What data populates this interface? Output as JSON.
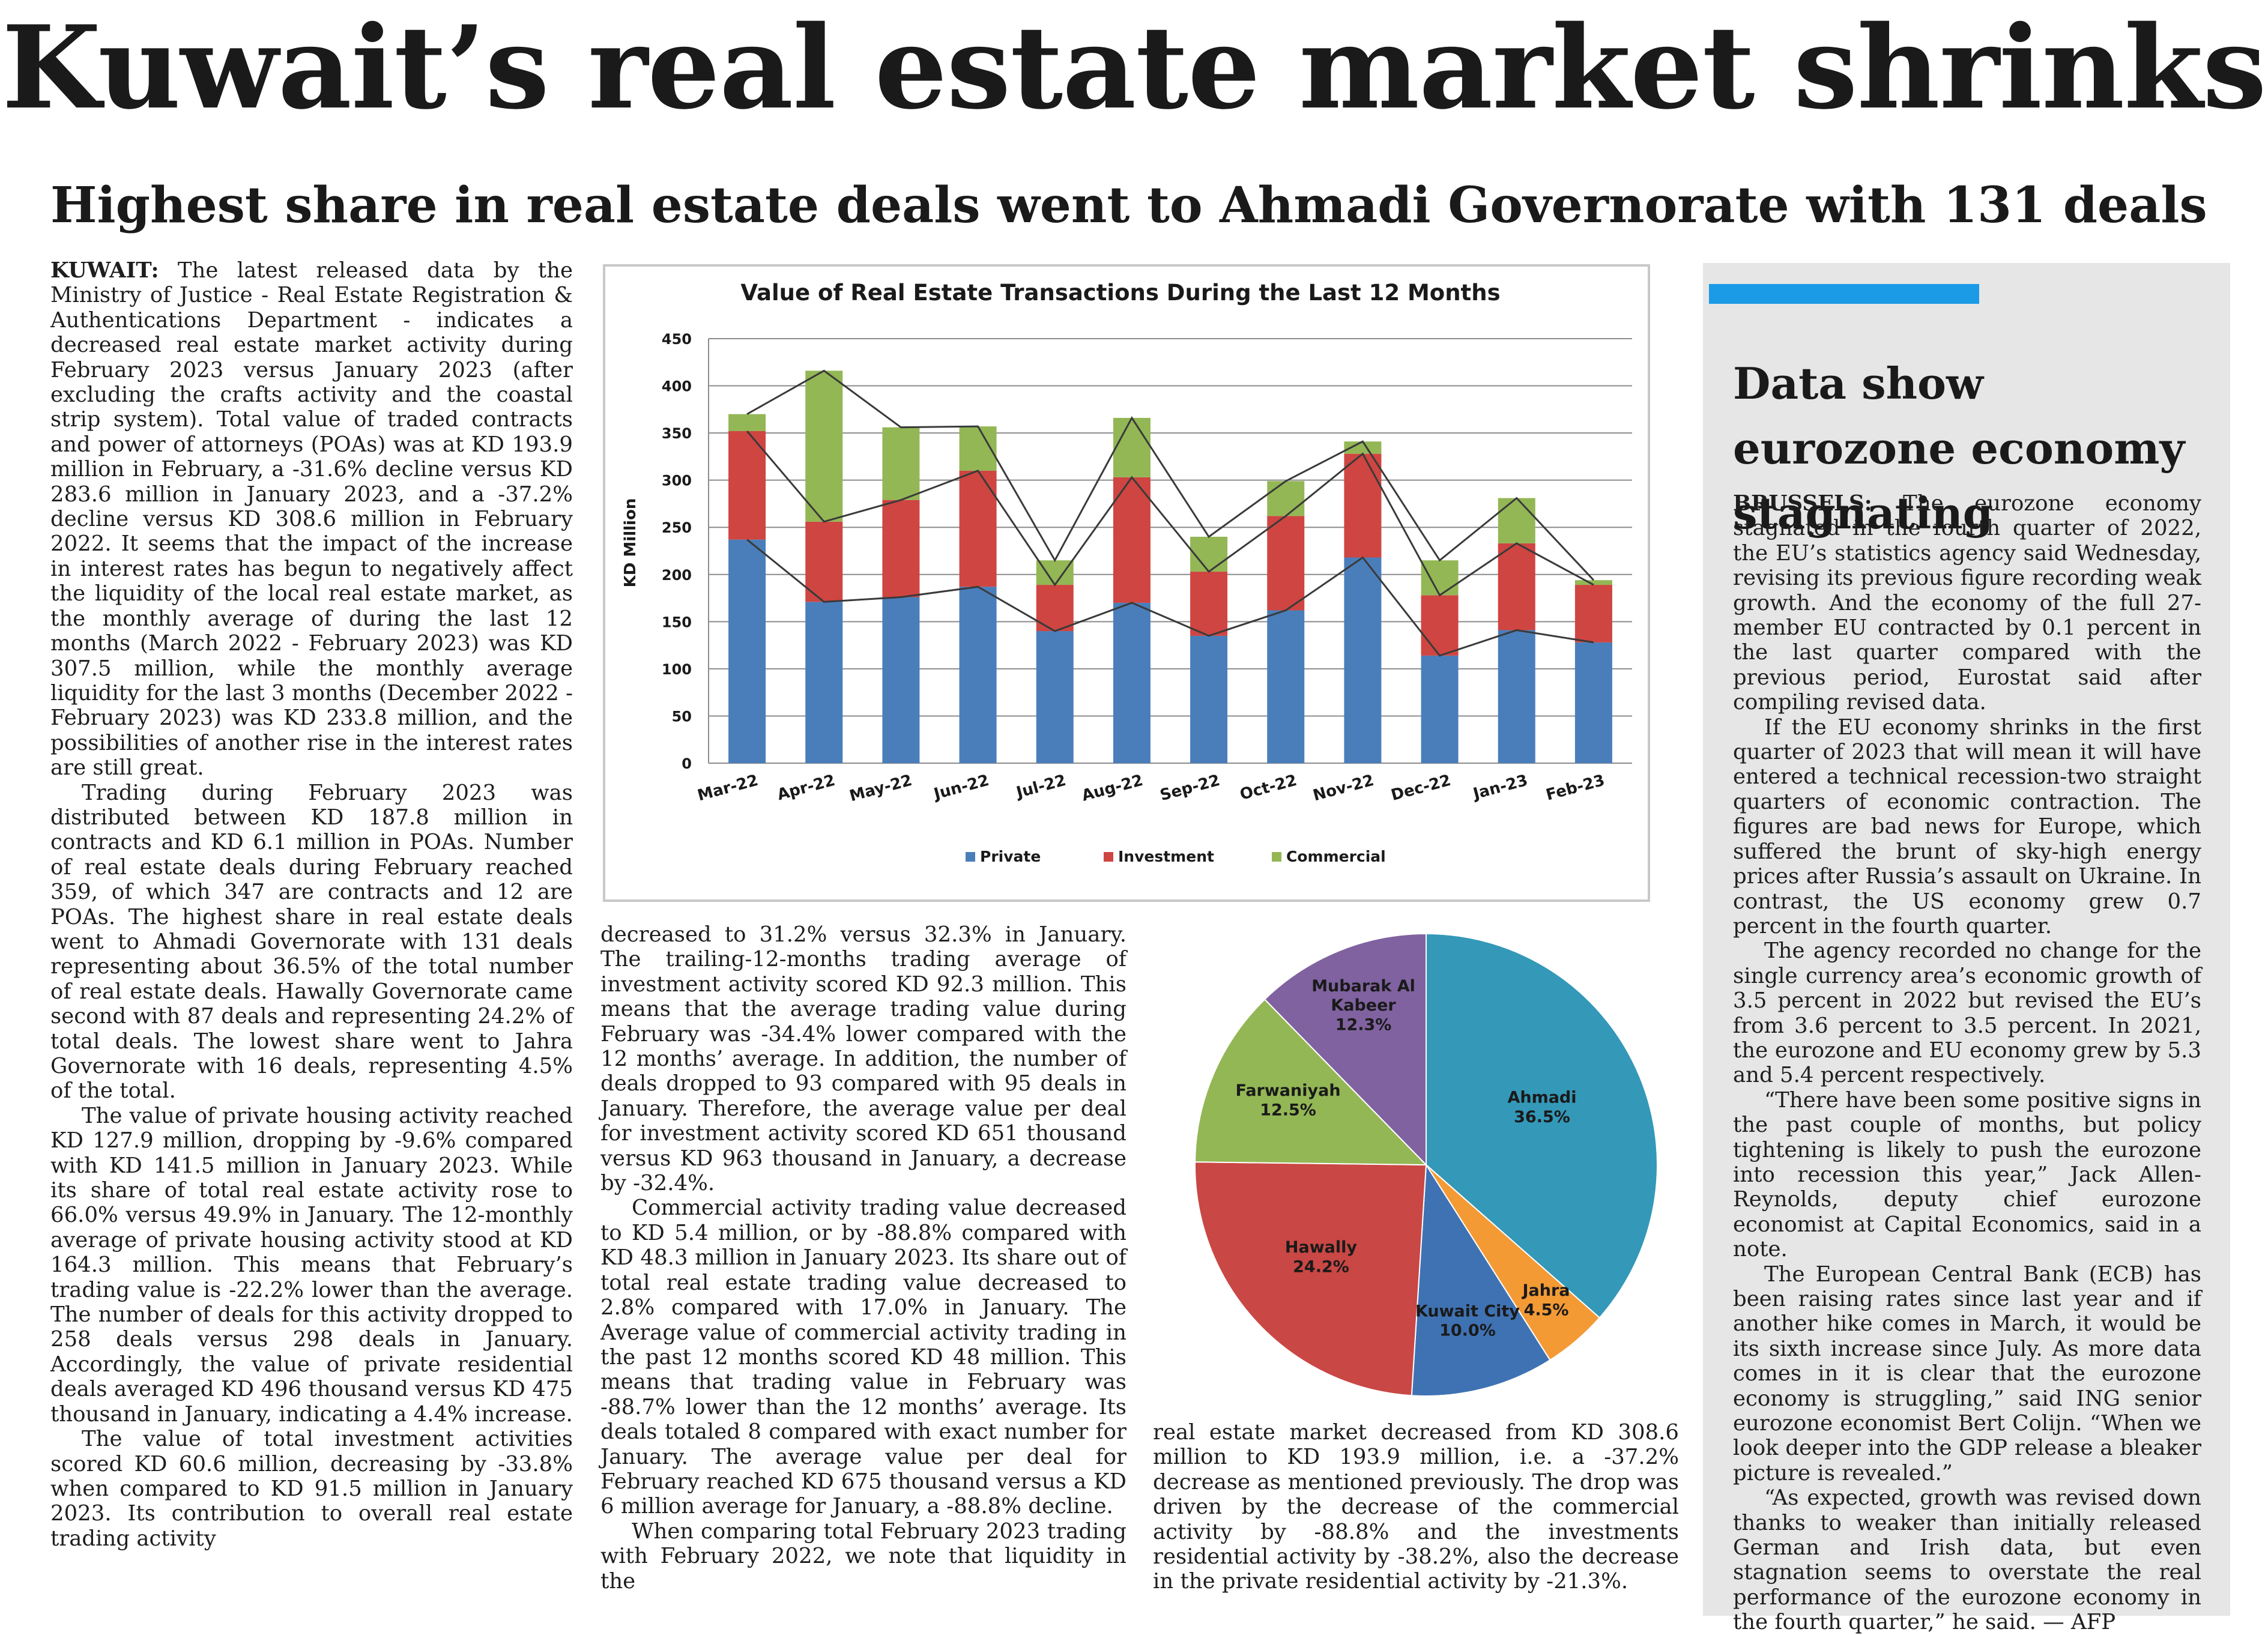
{
  "headline": "Kuwait’s real estate market shrinks",
  "subheadline": "Highest share in real estate deals went to Ahmadi Governorate with 131 deals",
  "main_article": {
    "dateline": "KUWAIT:",
    "col1": [
      " The latest released data by the Ministry of Justice - Real Estate Registration & Authentications Department - indicates a decreased real estate market activity during February 2023 versus January 2023 (after excluding the crafts activity and the coastal strip system). Total value of traded contracts and power of attorneys (POAs) was at KD 193.9 million in February, a -31.6% decline versus KD 283.6 million in January 2023, and a -37.2% decline versus KD 308.6 million in February 2022. It seems that the impact of the increase in interest rates has begun to negatively affect the liquidity of the local real estate market, as the monthly average of during the last 12 months (March 2022 - February 2023) was KD 307.5 million, while the monthly average liquidity for the last 3 months (December 2022 - February 2023) was KD 233.8 million, and the possibilities of another rise in the interest rates are still great.",
      "Trading during February 2023 was distributed between KD 187.8 million in contracts and KD 6.1 million in POAs. Number of real estate deals during February reached 359, of which 347 are contracts and 12 are POAs. The highest share in real estate deals went to Ahmadi Governorate with 131 deals representing about 36.5% of the total number of real estate deals. Hawally Governorate came second with 87 deals and representing 24.2% of total deals. The lowest share went to Jahra Governorate with 16 deals, representing 4.5% of the total.",
      "The value of private housing activity reached KD 127.9 million, dropping by -9.6% compared with KD 141.5 million in January 2023. While its share of total real estate activity rose to 66.0% versus 49.9% in January. The 12-monthly average of private housing activity stood at KD 164.3 million. This means that February’s trading value is -22.2% lower than the average. The number of deals for this activity dropped to 258 deals versus 298 deals in January. Accordingly, the value of private residential deals averaged KD 496 thousand versus KD 475 thousand in January, indicating a 4.4% increase.",
      "The value of total investment activities scored KD 60.6 million, decreasing by -33.8% when compared to KD 91.5 million in January 2023. Its contribution to overall real estate trading activity"
    ],
    "col2": [
      "decreased to 31.2% versus 32.3% in January. The trailing-12-months trading average of investment activity scored KD 92.3 million. This means that the average trading value during February was -34.4% lower compared with the 12 months’ average. In addition, the number of deals dropped to 93 compared with 95 deals in January. Therefore, the average value per deal for investment activity scored KD 651 thousand versus KD 963 thousand in January, a decrease by -32.4%.",
      "Commercial activity trading value decreased to KD 5.4 million, or by -88.8% compared with KD 48.3 million in January 2023. Its share out of total real estate trading value decreased to 2.8% compared with 17.0% in January. The Average value of commercial activity trading in the past 12 months scored KD 48 million. This means that trading value in February was -88.7% lower than the 12 months’ average. Its deals totaled 8 compared with exact number for January. The average value per deal for February reached KD 675 thousand versus a KD 6 million average for January, a -88.8% decline.",
      "When comparing total February 2023 trading with February 2022, we note that liquidity in the"
    ],
    "col3": [
      "real estate market decreased from KD 308.6 million to KD 193.9 million, i.e. a -37.2% decrease as mentioned previously. The drop was driven by the decrease of the commercial activity by -88.8% and the investments residential activity by -38.2%, also the decrease in the private residential activity by -21.3%."
    ]
  },
  "sidebar": {
    "title": "Data show eurozone economy stagnating",
    "dateline": "BRUSSELS:",
    "paragraphs": [
      " The eurozone economy stagnated in the fourth quarter of 2022, the EU’s statistics agency said Wednesday, revising its previous figure recording weak growth. And the economy of the full 27-member EU contracted by 0.1 percent in the last quarter compared with the previous period, Eurostat said after compiling revised data.",
      "If the EU economy shrinks in the first quarter of 2023 that will mean it will have entered a technical recession-two straight quarters of economic contraction. The figures are bad news for Europe, which suffered the brunt of sky-high energy prices after Russia’s assault on Ukraine. In contrast, the US economy grew 0.7 percent in the fourth quarter.",
      "The agency recorded no change for the single currency area’s economic growth of 3.5 percent in 2022 but revised the EU’s from 3.6 percent to 3.5 percent. In 2021, the eurozone and EU economy grew by 5.3 and 5.4 percent respectively.",
      "“There have been some positive signs in the past couple of months, but policy tightening is likely to push the eurozone into recession this year,” Jack Allen-Reynolds, deputy chief eurozone economist at Capital Economics, said in a note.",
      "The European Central Bank (ECB) has been raising rates since last year and if another hike comes in March, it would be its sixth increase since July. As more data comes in it is clear that the eurozone economy is struggling,” said ING senior eurozone economist Bert Colijn. “When we look deeper into the GDP release a bleaker picture is revealed.”",
      "“As expected, growth was revised down thanks to weaker than initially released German and Irish data, but even stagnation seems to overstate the real performance of the eurozone economy in the fourth quarter,” he said. — AFP"
    ],
    "accent_color": "#1b9ae6"
  },
  "chart_data": [
    {
      "type": "bar",
      "stacked": true,
      "title": "Value of Real Estate Transactions During the Last  12 Months",
      "ylabel": "KD Million",
      "xlabel": "",
      "ylim": [
        0,
        450
      ],
      "yticks": [
        0,
        50,
        100,
        150,
        200,
        250,
        300,
        350,
        400,
        450
      ],
      "grid": true,
      "legend_position": "bottom",
      "categories": [
        "Mar-22",
        "Apr-22",
        "May-22",
        "Jun-22",
        "Jul-22",
        "Aug-22",
        "Sep-22",
        "Oct-22",
        "Nov-22",
        "Dec-22",
        "Jan-23",
        "Feb-23"
      ],
      "series": [
        {
          "name": "Private",
          "color": "#4a7ebb",
          "values": [
            237,
            171,
            176,
            187,
            140,
            170,
            135,
            162,
            218,
            114,
            141,
            128
          ]
        },
        {
          "name": "Investment",
          "color": "#cf4541",
          "values": [
            115,
            85,
            103,
            123,
            49,
            133,
            68,
            100,
            110,
            64,
            92,
            61
          ]
        },
        {
          "name": "Commercial",
          "color": "#93b755",
          "values": [
            18,
            160,
            77,
            47,
            26,
            63,
            37,
            37,
            13,
            37,
            48,
            5
          ]
        }
      ]
    },
    {
      "type": "pie",
      "title": "",
      "start_angle_deg": -90,
      "slices": [
        {
          "label": "Ahmadi",
          "value": 36.5,
          "display": "36.5%",
          "color": "#3498b8"
        },
        {
          "label": "Jahra",
          "value": 4.5,
          "display": "4.5%",
          "color": "#f39a35"
        },
        {
          "label": "Kuwait City",
          "value": 10.0,
          "display": "10.0%",
          "color": "#3f72b3"
        },
        {
          "label": "Hawally",
          "value": 24.2,
          "display": "24.2%",
          "color": "#c94744"
        },
        {
          "label": "Farwaniyah",
          "value": 12.5,
          "display": "12.5%",
          "color": "#93b755"
        },
        {
          "label": "Mubarak Al Kabeer",
          "value": 12.3,
          "display": "12.3%",
          "color": "#8062a0"
        }
      ]
    }
  ]
}
